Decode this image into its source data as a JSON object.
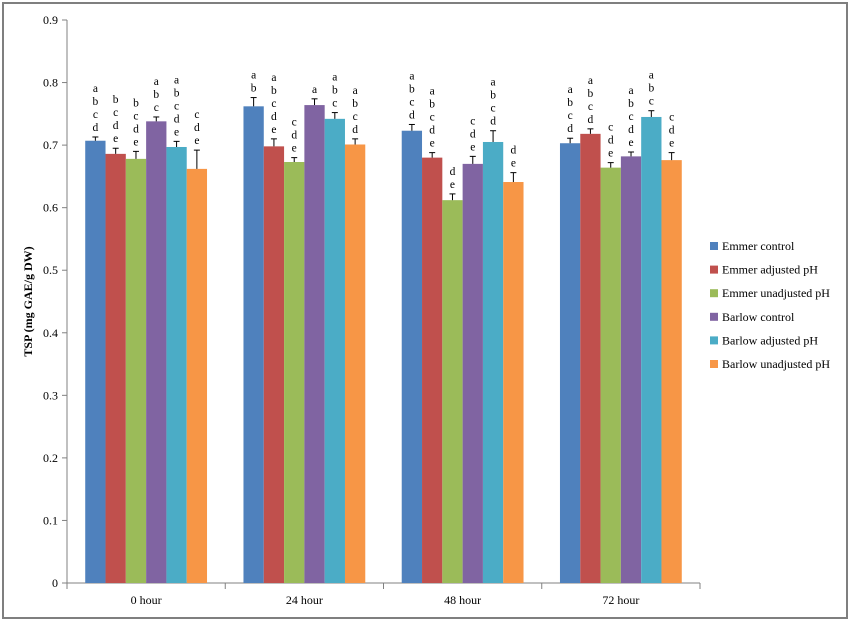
{
  "chart_data": {
    "type": "bar",
    "title": "",
    "xlabel": "",
    "ylabel": "TSP (mg  GAE/g DW)",
    "ylim": [
      0,
      0.9
    ],
    "yticks": [
      "0",
      "0.1",
      "0.2",
      "0.3",
      "0.4",
      "0.5",
      "0.6",
      "0.7",
      "0.8",
      "0.9"
    ],
    "categories": [
      "0 hour",
      "24 hour",
      "48 hour",
      "72 hour"
    ],
    "legend_position": "right",
    "series": [
      {
        "name": "Emmer control",
        "color": "#4f81bd",
        "values": [
          0.707,
          0.762,
          0.723,
          0.703
        ],
        "errors": [
          0.006,
          0.014,
          0.01,
          0.008
        ],
        "letters": [
          [
            "a",
            "b",
            "c",
            "d"
          ],
          [
            "a",
            "b"
          ],
          [
            "a",
            "b",
            "c",
            "d"
          ],
          [
            "a",
            "b",
            "c",
            "d"
          ]
        ]
      },
      {
        "name": "Emmer adjusted pH",
        "color": "#c0504d",
        "values": [
          0.686,
          0.698,
          0.68,
          0.718
        ],
        "errors": [
          0.009,
          0.012,
          0.008,
          0.008
        ],
        "letters": [
          [
            "b",
            "c",
            "d",
            "e"
          ],
          [
            "a",
            "b",
            "c",
            "d",
            "e"
          ],
          [
            "a",
            "b",
            "c",
            "d",
            "e"
          ],
          [
            "a",
            "b",
            "c",
            "d"
          ]
        ]
      },
      {
        "name": "Emmer unadjusted pH",
        "color": "#9bbb59",
        "values": [
          0.678,
          0.673,
          0.612,
          0.664
        ],
        "errors": [
          0.012,
          0.007,
          0.01,
          0.008
        ],
        "letters": [
          [
            "b",
            "c",
            "d",
            "e"
          ],
          [
            "c",
            "d",
            "e"
          ],
          [
            "d",
            "e"
          ],
          [
            "c",
            "d",
            "e"
          ]
        ]
      },
      {
        "name": "Barlow control",
        "color": "#8064a2",
        "values": [
          0.738,
          0.764,
          0.67,
          0.682
        ],
        "errors": [
          0.007,
          0.01,
          0.012,
          0.007
        ],
        "letters": [
          [
            "a",
            "b",
            "c"
          ],
          [
            "a"
          ],
          [
            "c",
            "d",
            "e"
          ],
          [
            "a",
            "b",
            "c",
            "d",
            "e"
          ]
        ]
      },
      {
        "name": "Barlow adjusted pH",
        "color": "#4bacc6",
        "values": [
          0.697,
          0.742,
          0.705,
          0.745
        ],
        "errors": [
          0.009,
          0.01,
          0.018,
          0.01
        ],
        "letters": [
          [
            "a",
            "b",
            "c",
            "d",
            "e"
          ],
          [
            "a",
            "b",
            "c"
          ],
          [
            "a",
            "b",
            "c",
            "d"
          ],
          [
            "a",
            "b",
            "c"
          ]
        ]
      },
      {
        "name": "Barlow unadjusted pH",
        "color": "#f79646",
        "values": [
          0.662,
          0.701,
          0.641,
          0.676
        ],
        "errors": [
          0.03,
          0.009,
          0.015,
          0.012
        ],
        "letters": [
          [
            "c",
            "d",
            "e"
          ],
          [
            "a",
            "b",
            "c",
            "d"
          ],
          [
            "d",
            "e"
          ],
          [
            "c",
            "d",
            "e"
          ]
        ]
      }
    ]
  }
}
